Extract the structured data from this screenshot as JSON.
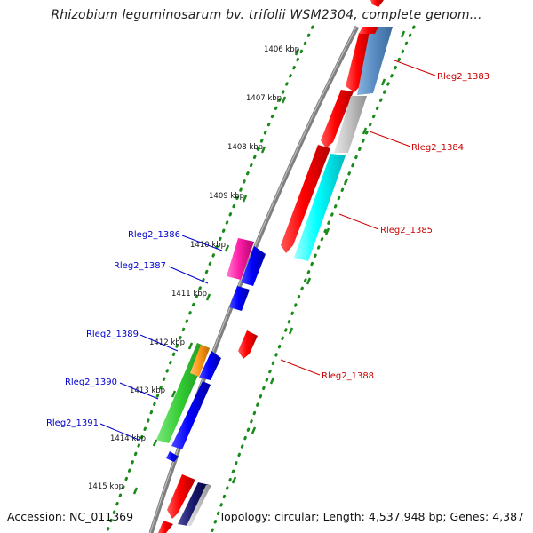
{
  "title": "Rhizobium leguminosarum bv. trifolii WSM2304, complete genom...",
  "footer": {
    "accession": "Accession: NC_011369",
    "topology": "Topology: circular; Length: 4,537,948 bp; Genes: 4,387"
  },
  "colors": {
    "backbone": "#7f7f7f",
    "tick_dots": "#1a8a1a",
    "forward_label": "#cc0000",
    "reverse_label": "#0000cc"
  },
  "ticks": [
    "1406 kbp",
    "1407 kbp",
    "1408 kbp",
    "1409 kbp",
    "1410 kbp",
    "1411 kbp",
    "1412 kbp",
    "1413 kbp",
    "1414 kbp",
    "1415 kbp"
  ],
  "gene_labels": {
    "forward": [
      "Rleg2_1383",
      "Rleg2_1384",
      "Rleg2_1385",
      "Rleg2_1388"
    ],
    "reverse": [
      "Rleg2_1386",
      "Rleg2_1387",
      "Rleg2_1389",
      "Rleg2_1390",
      "Rleg2_1391"
    ]
  }
}
